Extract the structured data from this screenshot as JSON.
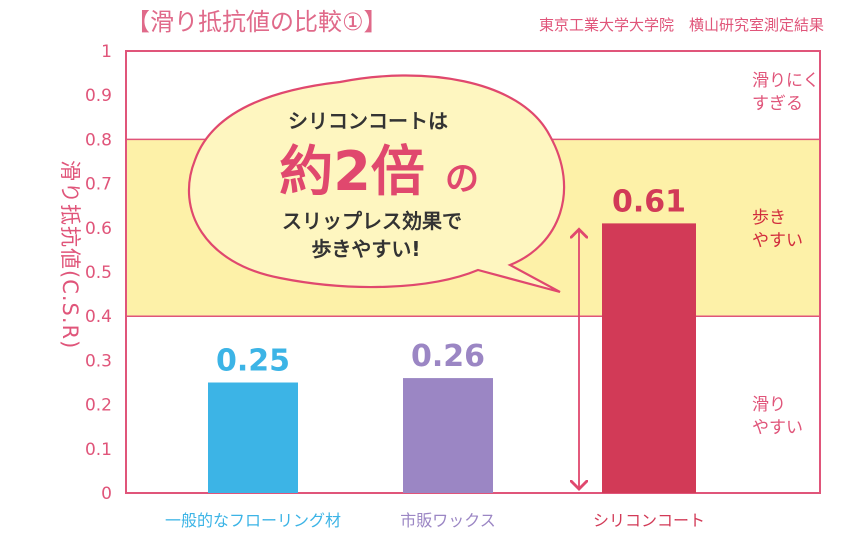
{
  "header": {
    "title": "【滑り抵抗値の比較①】",
    "source": "東京工業大学大学院　横山研究室測定結果"
  },
  "bubble": {
    "line1": "シリコンコートは",
    "big": "約2倍",
    "no": "の",
    "line3": "スリップレス効果で",
    "line4": "歩きやすい!"
  },
  "zones": {
    "top": [
      "滑りにく",
      "すぎる"
    ],
    "middle": [
      "歩き",
      "やすい"
    ],
    "bottom": [
      "滑り",
      "やすい"
    ]
  },
  "colors": {
    "axis": "#e0557a",
    "band": "#fdf1a8",
    "bar1": "#3cb4e6",
    "bar2": "#9b86c4",
    "bar3": "#d23a57",
    "zone_middle_text": "#d12c3d",
    "zone_other_text": "#e0557a"
  },
  "chart_data": {
    "type": "bar",
    "ylabel": "滑り抵抗値(C.S.R)",
    "ylim": [
      0,
      1
    ],
    "yticks": [
      "0",
      "0.1",
      "0.2",
      "0.3",
      "0.4",
      "0.5",
      "0.6",
      "0.7",
      "0.8",
      "0.9",
      "1"
    ],
    "categories": [
      "一般的なフローリング材",
      "市販ワックス",
      "シリコンコート"
    ],
    "values": [
      0.25,
      0.26,
      0.61
    ],
    "value_labels": [
      "0.25",
      "0.26",
      "0.61"
    ],
    "optimal_band": [
      0.4,
      0.8
    ],
    "grid": false
  }
}
